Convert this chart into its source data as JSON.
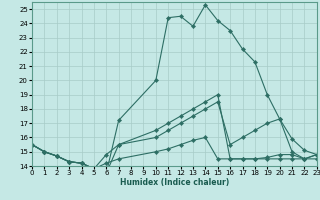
{
  "xlabel": "Humidex (Indice chaleur)",
  "bg_color": "#c5e8e5",
  "grid_color": "#a8ccc8",
  "line_color": "#2d6e64",
  "xlim": [
    0,
    23
  ],
  "ylim": [
    14,
    25.5
  ],
  "yticks": [
    14,
    15,
    16,
    17,
    18,
    19,
    20,
    21,
    22,
    23,
    24,
    25
  ],
  "xticks": [
    0,
    1,
    2,
    3,
    4,
    5,
    6,
    7,
    8,
    9,
    10,
    11,
    12,
    13,
    14,
    15,
    16,
    17,
    18,
    19,
    20,
    21,
    22,
    23
  ],
  "line1_x": [
    0,
    1,
    2,
    3,
    4,
    5,
    6,
    7,
    10,
    11,
    12,
    13,
    14,
    15,
    16,
    17,
    18,
    19,
    20,
    21,
    22,
    23
  ],
  "line1_y": [
    15.5,
    15.0,
    14.7,
    14.3,
    14.2,
    13.8,
    13.5,
    17.2,
    20.0,
    24.4,
    24.5,
    23.8,
    25.3,
    24.2,
    23.5,
    22.2,
    21.3,
    19.0,
    17.3,
    15.9,
    15.1,
    14.8
  ],
  "line2_x": [
    0,
    1,
    2,
    3,
    4,
    5,
    6,
    7,
    10,
    11,
    12,
    13,
    14,
    15,
    16,
    17,
    18,
    19,
    20,
    21,
    22,
    23
  ],
  "line2_y": [
    15.5,
    15.0,
    14.7,
    14.3,
    14.2,
    13.8,
    13.5,
    15.5,
    16.5,
    17.0,
    17.5,
    18.0,
    18.5,
    19.0,
    14.5,
    14.5,
    14.5,
    14.6,
    14.8,
    14.8,
    14.5,
    14.8
  ],
  "line3_x": [
    0,
    1,
    2,
    3,
    4,
    5,
    6,
    7,
    10,
    11,
    12,
    13,
    14,
    15,
    16,
    17,
    18,
    19,
    20,
    21,
    22,
    23
  ],
  "line3_y": [
    15.5,
    15.0,
    14.7,
    14.3,
    14.2,
    13.8,
    14.8,
    15.5,
    16.0,
    16.5,
    17.0,
    17.5,
    18.0,
    18.5,
    15.5,
    16.0,
    16.5,
    17.0,
    17.3,
    15.0,
    14.5,
    14.5
  ],
  "line4_x": [
    0,
    1,
    2,
    3,
    4,
    5,
    6,
    7,
    10,
    11,
    12,
    13,
    14,
    15,
    16,
    17,
    18,
    19,
    20,
    21,
    22,
    23
  ],
  "line4_y": [
    15.5,
    15.0,
    14.7,
    14.3,
    14.2,
    13.8,
    14.2,
    14.5,
    15.0,
    15.2,
    15.5,
    15.8,
    16.0,
    14.5,
    14.5,
    14.5,
    14.5,
    14.5,
    14.5,
    14.5,
    14.5,
    14.8
  ],
  "marker_size": 2.2,
  "line_width": 0.8,
  "tick_labelsize": 5,
  "xlabel_fontsize": 5.5
}
